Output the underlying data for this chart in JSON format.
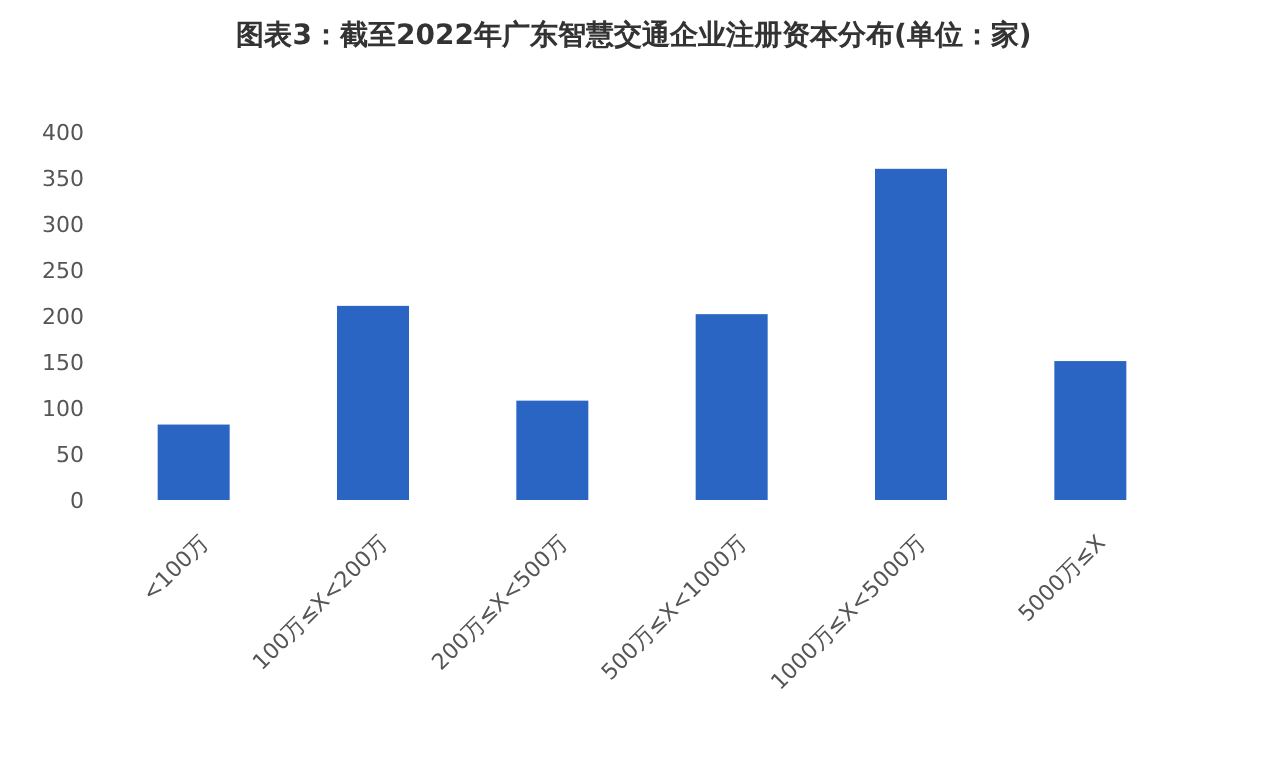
{
  "chart_data": {
    "type": "bar",
    "title": "图表3：截至2022年广东智慧交通企业注册资本分布(单位：家)",
    "categories": [
      "<100万",
      "100万≤X<200万",
      "200万≤X<500万",
      "500万≤X<1000万",
      "1000万≤X<5000万",
      "5000万≤X"
    ],
    "values": [
      82,
      211,
      108,
      202,
      360,
      151
    ],
    "color": "#2a65c4",
    "ylim": [
      0,
      400
    ],
    "yticks": [
      0,
      50,
      100,
      150,
      200,
      250,
      300,
      350,
      400
    ],
    "grid": false
  }
}
